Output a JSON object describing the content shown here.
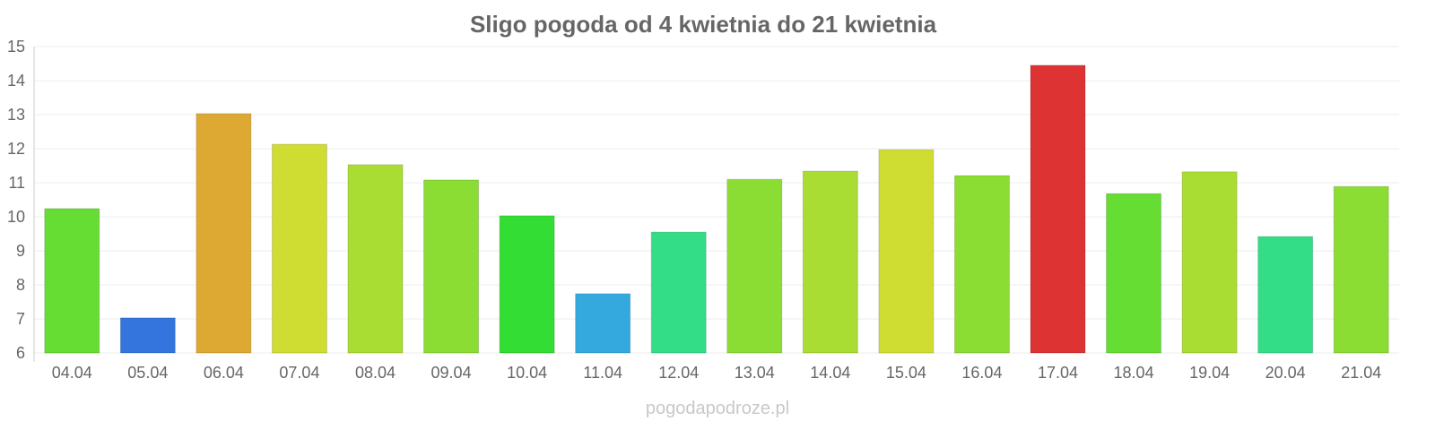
{
  "chart_data": {
    "type": "bar",
    "title": "Sligo pogoda od 4 kwietnia do 21 kwietnia",
    "xlabel": "",
    "ylabel": "",
    "ylim": [
      6,
      15
    ],
    "yticks": [
      "6",
      "7",
      "8",
      "9",
      "10",
      "11",
      "12",
      "13",
      "14",
      "15"
    ],
    "grid": true,
    "categories": [
      "04.04",
      "05.04",
      "06.04",
      "07.04",
      "08.04",
      "09.04",
      "10.04",
      "11.04",
      "12.04",
      "13.04",
      "14.04",
      "15.04",
      "16.04",
      "17.04",
      "18.04",
      "19.04",
      "20.04",
      "21.04"
    ],
    "values": [
      10.24,
      7.03,
      13.03,
      12.13,
      11.53,
      11.08,
      10.03,
      7.74,
      9.55,
      11.1,
      11.34,
      11.97,
      11.21,
      14.45,
      10.68,
      11.32,
      9.42,
      10.89
    ],
    "colors": [
      "#66dd33",
      "#3375dd",
      "#dda933",
      "#cfdd33",
      "#aadd33",
      "#8bdd33",
      "#33dd33",
      "#33a9dd",
      "#33dd88",
      "#8bdd33",
      "#aadd33",
      "#cfdd33",
      "#8bdd33",
      "#dd3333",
      "#66dd33",
      "#aadd33",
      "#33dd88",
      "#8bdd33"
    ]
  },
  "watermark": "pogodapodroze.pl"
}
